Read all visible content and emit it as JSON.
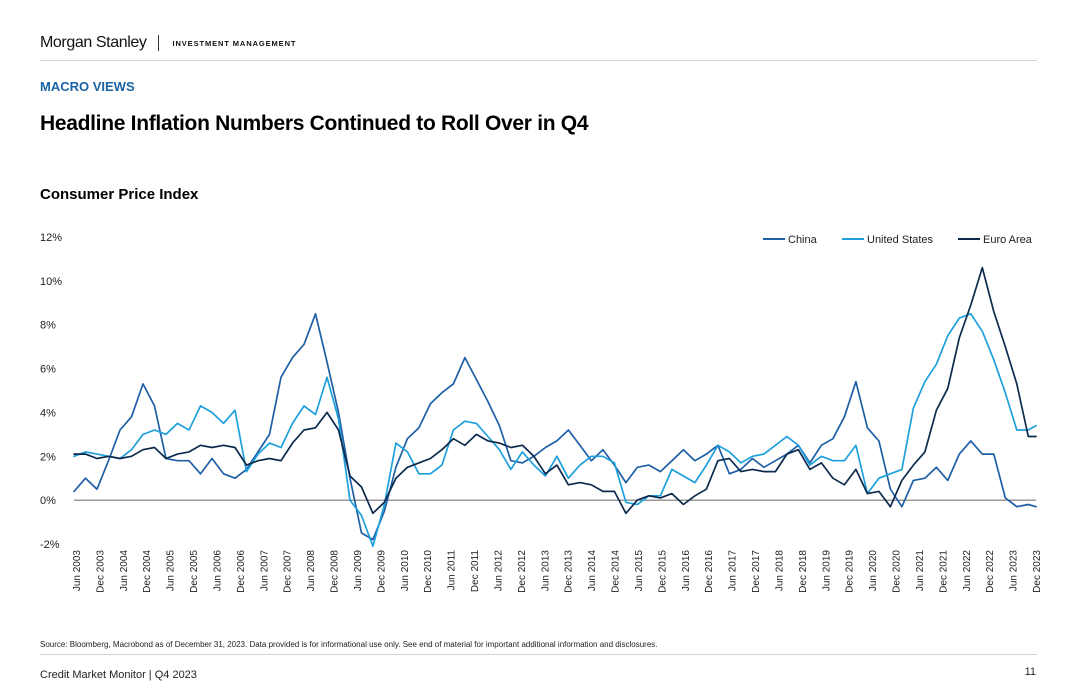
{
  "header": {
    "brand": "Morgan Stanley",
    "brand_sub": "INVESTMENT MANAGEMENT"
  },
  "section_label": "MACRO VIEWS",
  "headline": "Headline Inflation Numbers Continued to Roll Over in Q4",
  "footer": {
    "source": "Source: Bloomberg, Macrobond as of December 31, 2023. Data provided is for informational use only. See end of material for important additional information and disclosures.",
    "left": "Credit Market Monitor | Q4 2023",
    "page": "11"
  },
  "colors": {
    "section_label": "#1a63a6",
    "china": "#1f5fa6",
    "united_states": "#1ea0dc",
    "euro_area": "#0d2a4d"
  },
  "chart_data": {
    "type": "line",
    "title": "Consumer Price Index",
    "ylim": [
      -2,
      12
    ],
    "y_ticks": [
      -2,
      0,
      2,
      4,
      6,
      8,
      10,
      12
    ],
    "y_tick_labels": [
      "-2%",
      "0%",
      "2%",
      "4%",
      "6%",
      "8%",
      "10%",
      "12%"
    ],
    "x_tick_labels": [
      "Jun 2003",
      "Dec 2003",
      "Jun 2004",
      "Dec 2004",
      "Jun 2005",
      "Dec 2005",
      "Jun 2006",
      "Dec 2006",
      "Jun 2007",
      "Dec 2007",
      "Jun 2008",
      "Dec 2008",
      "Jun 2009",
      "Dec 2009",
      "Jun 2010",
      "Dec 2010",
      "Jun 2011",
      "Dec 2011",
      "Jun 2012",
      "Dec 2012",
      "Jun 2013",
      "Dec 2013",
      "Jun 2014",
      "Dec 2014",
      "Jun 2015",
      "Dec 2015",
      "Jun 2016",
      "Dec 2016",
      "Jun 2017",
      "Dec 2017",
      "Jun 2018",
      "Dec 2018",
      "Jun 2019",
      "Dec 2019",
      "Jun 2020",
      "Dec 2020",
      "Jun 2021",
      "Dec 2021",
      "Jun 2022",
      "Dec 2022",
      "Jun 2023",
      "Dec 2023"
    ],
    "grid": false,
    "zero_line": true,
    "legend_position": "top-right",
    "series": [
      {
        "name": "China",
        "color": "#1f5fa6",
        "x": [
          "2003-01",
          "2003-04",
          "2003-07",
          "2003-10",
          "2004-01",
          "2004-04",
          "2004-07",
          "2004-10",
          "2005-01",
          "2005-04",
          "2005-07",
          "2005-10",
          "2006-01",
          "2006-04",
          "2006-07",
          "2006-10",
          "2007-01",
          "2007-04",
          "2007-07",
          "2007-10",
          "2008-01",
          "2008-04",
          "2008-07",
          "2008-10",
          "2009-01",
          "2009-04",
          "2009-07",
          "2009-10",
          "2010-01",
          "2010-04",
          "2010-07",
          "2010-10",
          "2011-01",
          "2011-04",
          "2011-07",
          "2011-10",
          "2012-01",
          "2012-04",
          "2012-07",
          "2012-10",
          "2013-01",
          "2013-04",
          "2013-07",
          "2013-10",
          "2014-01",
          "2014-04",
          "2014-07",
          "2014-10",
          "2015-01",
          "2015-04",
          "2015-07",
          "2015-10",
          "2016-01",
          "2016-04",
          "2016-07",
          "2016-10",
          "2017-01",
          "2017-04",
          "2017-07",
          "2017-10",
          "2018-01",
          "2018-04",
          "2018-07",
          "2018-10",
          "2019-01",
          "2019-04",
          "2019-07",
          "2019-10",
          "2020-01",
          "2020-04",
          "2020-07",
          "2020-10",
          "2021-01",
          "2021-04",
          "2021-07",
          "2021-10",
          "2022-01",
          "2022-04",
          "2022-07",
          "2022-10",
          "2023-01",
          "2023-04",
          "2023-07",
          "2023-10",
          "2023-12"
        ],
        "values": [
          0.4,
          1.0,
          0.5,
          1.8,
          3.2,
          3.8,
          5.3,
          4.3,
          1.9,
          1.8,
          1.8,
          1.2,
          1.9,
          1.2,
          1.0,
          1.4,
          2.2,
          3.0,
          5.6,
          6.5,
          7.1,
          8.5,
          6.3,
          4.0,
          1.0,
          -1.5,
          -1.8,
          -0.5,
          1.5,
          2.8,
          3.3,
          4.4,
          4.9,
          5.3,
          6.5,
          5.5,
          4.5,
          3.4,
          1.8,
          1.7,
          2.0,
          2.4,
          2.7,
          3.2,
          2.5,
          1.8,
          2.3,
          1.6,
          0.8,
          1.5,
          1.6,
          1.3,
          1.8,
          2.3,
          1.8,
          2.1,
          2.5,
          1.2,
          1.4,
          1.9,
          1.5,
          1.8,
          2.1,
          2.5,
          1.7,
          2.5,
          2.8,
          3.8,
          5.4,
          3.3,
          2.7,
          0.5,
          -0.3,
          0.9,
          1.0,
          1.5,
          0.9,
          2.1,
          2.7,
          2.1,
          2.1,
          0.1,
          -0.3,
          -0.2,
          -0.3
        ]
      },
      {
        "name": "United States",
        "color": "#1ea0dc",
        "x": [
          "2003-01",
          "2003-04",
          "2003-07",
          "2003-10",
          "2004-01",
          "2004-04",
          "2004-07",
          "2004-10",
          "2005-01",
          "2005-04",
          "2005-07",
          "2005-10",
          "2006-01",
          "2006-04",
          "2006-07",
          "2006-10",
          "2007-01",
          "2007-04",
          "2007-07",
          "2007-10",
          "2008-01",
          "2008-04",
          "2008-07",
          "2008-10",
          "2009-01",
          "2009-04",
          "2009-07",
          "2009-10",
          "2010-01",
          "2010-04",
          "2010-07",
          "2010-10",
          "2011-01",
          "2011-04",
          "2011-07",
          "2011-10",
          "2012-01",
          "2012-04",
          "2012-07",
          "2012-10",
          "2013-01",
          "2013-04",
          "2013-07",
          "2013-10",
          "2014-01",
          "2014-04",
          "2014-07",
          "2014-10",
          "2015-01",
          "2015-04",
          "2015-07",
          "2015-10",
          "2016-01",
          "2016-04",
          "2016-07",
          "2016-10",
          "2017-01",
          "2017-04",
          "2017-07",
          "2017-10",
          "2018-01",
          "2018-04",
          "2018-07",
          "2018-10",
          "2019-01",
          "2019-04",
          "2019-07",
          "2019-10",
          "2020-01",
          "2020-04",
          "2020-07",
          "2020-10",
          "2021-01",
          "2021-04",
          "2021-07",
          "2021-10",
          "2022-01",
          "2022-04",
          "2022-07",
          "2022-10",
          "2023-01",
          "2023-04",
          "2023-07",
          "2023-10",
          "2023-12"
        ],
        "values": [
          2.0,
          2.2,
          2.1,
          2.0,
          1.9,
          2.3,
          3.0,
          3.2,
          3.0,
          3.5,
          3.2,
          4.3,
          4.0,
          3.5,
          4.1,
          1.3,
          2.1,
          2.6,
          2.4,
          3.5,
          4.3,
          3.9,
          5.6,
          3.7,
          0.0,
          -0.7,
          -2.1,
          -0.2,
          2.6,
          2.2,
          1.2,
          1.2,
          1.6,
          3.2,
          3.6,
          3.5,
          2.9,
          2.3,
          1.4,
          2.2,
          1.6,
          1.1,
          2.0,
          1.0,
          1.6,
          2.0,
          2.0,
          1.7,
          -0.1,
          -0.2,
          0.2,
          0.2,
          1.4,
          1.1,
          0.8,
          1.6,
          2.5,
          2.2,
          1.7,
          2.0,
          2.1,
          2.5,
          2.9,
          2.5,
          1.6,
          2.0,
          1.8,
          1.8,
          2.5,
          0.3,
          1.0,
          1.2,
          1.4,
          4.2,
          5.4,
          6.2,
          7.5,
          8.3,
          8.5,
          7.7,
          6.4,
          4.9,
          3.2,
          3.2,
          3.4
        ]
      },
      {
        "name": "Euro Area",
        "color": "#0d2a4d",
        "x": [
          "2003-01",
          "2003-04",
          "2003-07",
          "2003-10",
          "2004-01",
          "2004-04",
          "2004-07",
          "2004-10",
          "2005-01",
          "2005-04",
          "2005-07",
          "2005-10",
          "2006-01",
          "2006-04",
          "2006-07",
          "2006-10",
          "2007-01",
          "2007-04",
          "2007-07",
          "2007-10",
          "2008-01",
          "2008-04",
          "2008-07",
          "2008-10",
          "2009-01",
          "2009-04",
          "2009-07",
          "2009-10",
          "2010-01",
          "2010-04",
          "2010-07",
          "2010-10",
          "2011-01",
          "2011-04",
          "2011-07",
          "2011-10",
          "2012-01",
          "2012-04",
          "2012-07",
          "2012-10",
          "2013-01",
          "2013-04",
          "2013-07",
          "2013-10",
          "2014-01",
          "2014-04",
          "2014-07",
          "2014-10",
          "2015-01",
          "2015-04",
          "2015-07",
          "2015-10",
          "2016-01",
          "2016-04",
          "2016-07",
          "2016-10",
          "2017-01",
          "2017-04",
          "2017-07",
          "2017-10",
          "2018-01",
          "2018-04",
          "2018-07",
          "2018-10",
          "2019-01",
          "2019-04",
          "2019-07",
          "2019-10",
          "2020-01",
          "2020-04",
          "2020-07",
          "2020-10",
          "2021-01",
          "2021-04",
          "2021-07",
          "2021-10",
          "2022-01",
          "2022-04",
          "2022-07",
          "2022-10",
          "2023-01",
          "2023-04",
          "2023-07",
          "2023-10",
          "2023-12"
        ],
        "values": [
          2.1,
          2.1,
          1.9,
          2.0,
          1.9,
          2.0,
          2.3,
          2.4,
          1.9,
          2.1,
          2.2,
          2.5,
          2.4,
          2.5,
          2.4,
          1.6,
          1.8,
          1.9,
          1.8,
          2.6,
          3.2,
          3.3,
          4.0,
          3.2,
          1.1,
          0.6,
          -0.6,
          -0.1,
          1.0,
          1.5,
          1.7,
          1.9,
          2.3,
          2.8,
          2.5,
          3.0,
          2.7,
          2.6,
          2.4,
          2.5,
          2.0,
          1.2,
          1.6,
          0.7,
          0.8,
          0.7,
          0.4,
          0.4,
          -0.6,
          0.0,
          0.2,
          0.1,
          0.3,
          -0.2,
          0.2,
          0.5,
          1.8,
          1.9,
          1.3,
          1.4,
          1.3,
          1.3,
          2.1,
          2.3,
          1.4,
          1.7,
          1.0,
          0.7,
          1.4,
          0.3,
          0.4,
          -0.3,
          0.9,
          1.6,
          2.2,
          4.1,
          5.1,
          7.4,
          8.9,
          10.6,
          8.6,
          7.0,
          5.3,
          2.9,
          2.9
        ]
      }
    ]
  }
}
